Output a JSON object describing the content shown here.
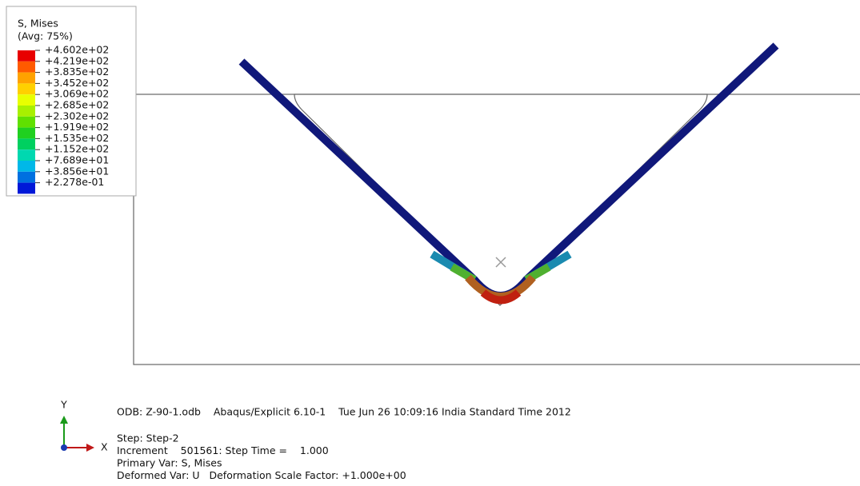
{
  "legend": {
    "title": "S, Mises",
    "subtitle": "(Avg: 75%)",
    "labels": [
      "+4.602e+02",
      "+4.219e+02",
      "+3.835e+02",
      "+3.452e+02",
      "+3.069e+02",
      "+2.685e+02",
      "+2.302e+02",
      "+1.919e+02",
      "+1.535e+02",
      "+1.152e+02",
      "+7.689e+01",
      "+3.856e+01",
      "+2.278e-01"
    ],
    "colors": [
      "#e80000",
      "#ff5a00",
      "#ffa200",
      "#ffd000",
      "#e8ff00",
      "#a8f000",
      "#60e000",
      "#20d020",
      "#00d060",
      "#00d8b0",
      "#00b8e8",
      "#0070e0",
      "#0018d8"
    ]
  },
  "triad": {
    "y": "Y",
    "x": "X"
  },
  "info": {
    "odb": "ODB: Z-90-1.odb    Abaqus/Explicit 6.10-1    Tue Jun 26 10:09:16 India Standard Time 2012",
    "lines": [
      "Step: Step-2",
      "Increment    501561: Step Time =    1.000",
      "Primary Var: S, Mises",
      "Deformed Var: U   Deformation Scale Factor: +1.000e+00"
    ]
  }
}
